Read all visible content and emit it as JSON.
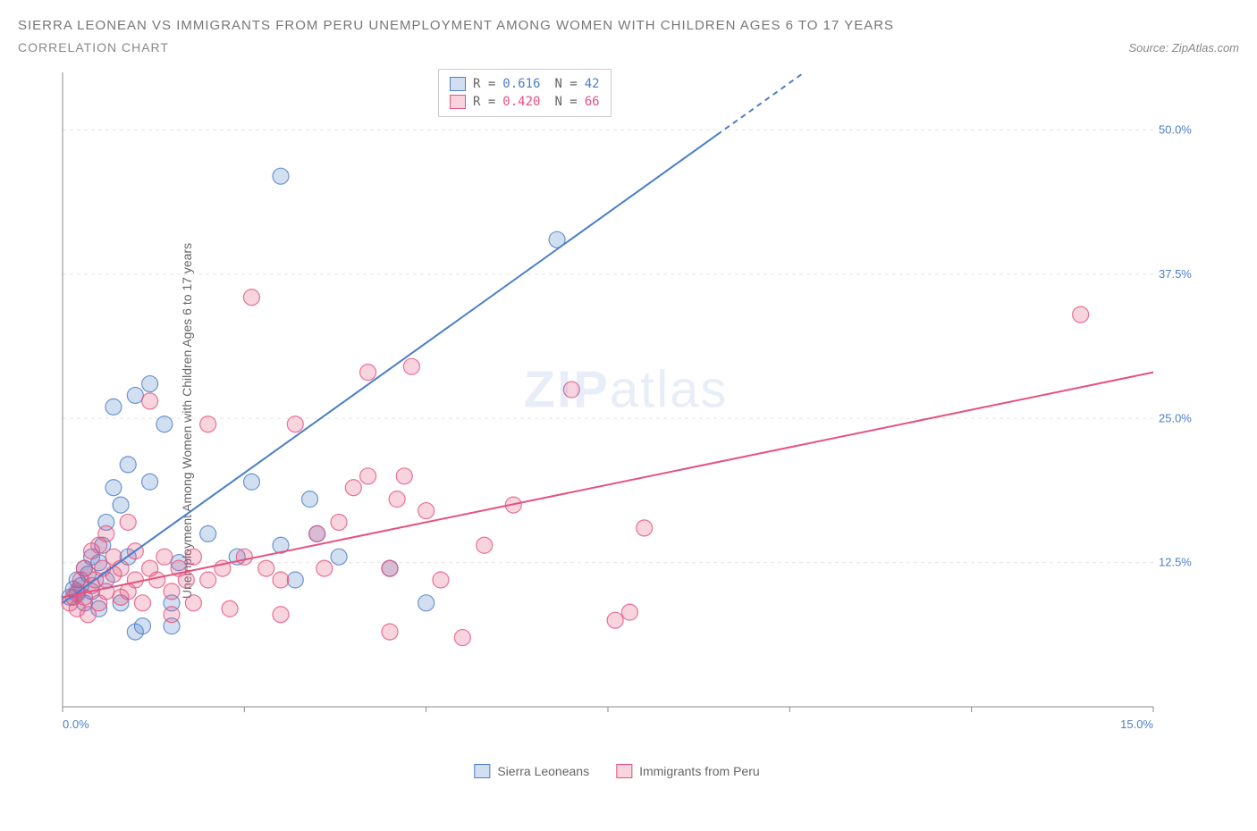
{
  "title": "SIERRA LEONEAN VS IMMIGRANTS FROM PERU UNEMPLOYMENT AMONG WOMEN WITH CHILDREN AGES 6 TO 17 YEARS",
  "subtitle": "CORRELATION CHART",
  "source": "Source: ZipAtlas.com",
  "y_axis_label": "Unemployment Among Women with Children Ages 6 to 17 years",
  "watermark_zip": "ZIP",
  "watermark_atlas": "atlas",
  "chart": {
    "type": "scatter",
    "xlim": [
      0,
      15
    ],
    "ylim": [
      0,
      55
    ],
    "x_ticks": [
      0,
      2.5,
      5,
      7.5,
      10,
      12.5,
      15
    ],
    "y_ticks": [
      12.5,
      25,
      37.5,
      50
    ],
    "y_tick_labels": [
      "12.5%",
      "25.0%",
      "37.5%",
      "50.0%"
    ],
    "x_min_label": "0.0%",
    "x_max_label": "15.0%",
    "background_color": "#ffffff",
    "grid_color": "#e5e5e5",
    "axis_color": "#888888",
    "tick_label_color": "#4a7ec9",
    "marker_radius": 9,
    "marker_fill_opacity": 0.25,
    "marker_stroke_opacity": 0.8,
    "line_width": 2,
    "series": [
      {
        "name": "Sierra Leoneans",
        "color": "#4a7ec9",
        "fill": "rgba(74,126,201,0.25)",
        "R": "0.616",
        "N": "42",
        "trend": {
          "x1": 0,
          "y1": 9,
          "x2": 10.2,
          "y2": 55,
          "dash_from_x": 9
        },
        "points": [
          [
            0.1,
            9.5
          ],
          [
            0.15,
            10.2
          ],
          [
            0.2,
            9.8
          ],
          [
            0.2,
            11
          ],
          [
            0.25,
            10.5
          ],
          [
            0.3,
            12
          ],
          [
            0.3,
            9
          ],
          [
            0.35,
            11.5
          ],
          [
            0.4,
            10
          ],
          [
            0.4,
            13
          ],
          [
            0.5,
            12.5
          ],
          [
            0.5,
            8.5
          ],
          [
            0.55,
            14
          ],
          [
            0.6,
            11
          ],
          [
            0.6,
            16
          ],
          [
            0.7,
            19
          ],
          [
            0.7,
            26
          ],
          [
            0.8,
            17.5
          ],
          [
            0.8,
            9
          ],
          [
            0.9,
            13
          ],
          [
            0.9,
            21
          ],
          [
            1.0,
            27
          ],
          [
            1.0,
            6.5
          ],
          [
            1.1,
            7
          ],
          [
            1.2,
            19.5
          ],
          [
            1.2,
            28
          ],
          [
            1.4,
            24.5
          ],
          [
            1.5,
            7
          ],
          [
            1.5,
            9
          ],
          [
            1.6,
            12.5
          ],
          [
            2.0,
            15
          ],
          [
            2.4,
            13
          ],
          [
            2.6,
            19.5
          ],
          [
            3.0,
            14
          ],
          [
            3.0,
            46
          ],
          [
            3.2,
            11
          ],
          [
            3.4,
            18
          ],
          [
            3.5,
            15
          ],
          [
            3.8,
            13
          ],
          [
            4.5,
            12
          ],
          [
            5.0,
            9
          ],
          [
            6.8,
            40.5
          ]
        ]
      },
      {
        "name": "Immigrants from Peru",
        "color": "#e5527e",
        "fill": "rgba(229,82,126,0.25)",
        "R": "0.420",
        "N": "66",
        "trend": {
          "x1": 0,
          "y1": 9.5,
          "x2": 15,
          "y2": 29
        },
        "points": [
          [
            0.1,
            9
          ],
          [
            0.15,
            9.5
          ],
          [
            0.2,
            10
          ],
          [
            0.2,
            8.5
          ],
          [
            0.25,
            11
          ],
          [
            0.3,
            9.5
          ],
          [
            0.3,
            12
          ],
          [
            0.35,
            8
          ],
          [
            0.4,
            10.5
          ],
          [
            0.4,
            13.5
          ],
          [
            0.45,
            11
          ],
          [
            0.5,
            9
          ],
          [
            0.5,
            14
          ],
          [
            0.55,
            12
          ],
          [
            0.6,
            10
          ],
          [
            0.6,
            15
          ],
          [
            0.7,
            11.5
          ],
          [
            0.7,
            13
          ],
          [
            0.8,
            9.5
          ],
          [
            0.8,
            12
          ],
          [
            0.9,
            10
          ],
          [
            0.9,
            16
          ],
          [
            1.0,
            11
          ],
          [
            1.0,
            13.5
          ],
          [
            1.1,
            9
          ],
          [
            1.2,
            12
          ],
          [
            1.2,
            26.5
          ],
          [
            1.3,
            11
          ],
          [
            1.4,
            13
          ],
          [
            1.5,
            10
          ],
          [
            1.5,
            8
          ],
          [
            1.6,
            12
          ],
          [
            1.7,
            11
          ],
          [
            1.8,
            13
          ],
          [
            1.8,
            9
          ],
          [
            2.0,
            11
          ],
          [
            2.0,
            24.5
          ],
          [
            2.2,
            12
          ],
          [
            2.3,
            8.5
          ],
          [
            2.5,
            13
          ],
          [
            2.6,
            35.5
          ],
          [
            2.8,
            12
          ],
          [
            3.0,
            11
          ],
          [
            3.0,
            8
          ],
          [
            3.2,
            24.5
          ],
          [
            3.5,
            15
          ],
          [
            3.6,
            12
          ],
          [
            3.8,
            16
          ],
          [
            4.0,
            19
          ],
          [
            4.2,
            20
          ],
          [
            4.2,
            29
          ],
          [
            4.5,
            12
          ],
          [
            4.5,
            6.5
          ],
          [
            4.6,
            18
          ],
          [
            4.7,
            20
          ],
          [
            4.8,
            29.5
          ],
          [
            5.0,
            17
          ],
          [
            5.2,
            11
          ],
          [
            5.5,
            6
          ],
          [
            5.8,
            14
          ],
          [
            6.2,
            17.5
          ],
          [
            7.0,
            27.5
          ],
          [
            7.6,
            7.5
          ],
          [
            7.8,
            8.2
          ],
          [
            8.0,
            15.5
          ],
          [
            14.0,
            34
          ]
        ]
      }
    ]
  },
  "legend": {
    "series1": "Sierra Leoneans",
    "series2": "Immigrants from Peru"
  },
  "stats_labels": {
    "R": "R =",
    "N": "N ="
  }
}
